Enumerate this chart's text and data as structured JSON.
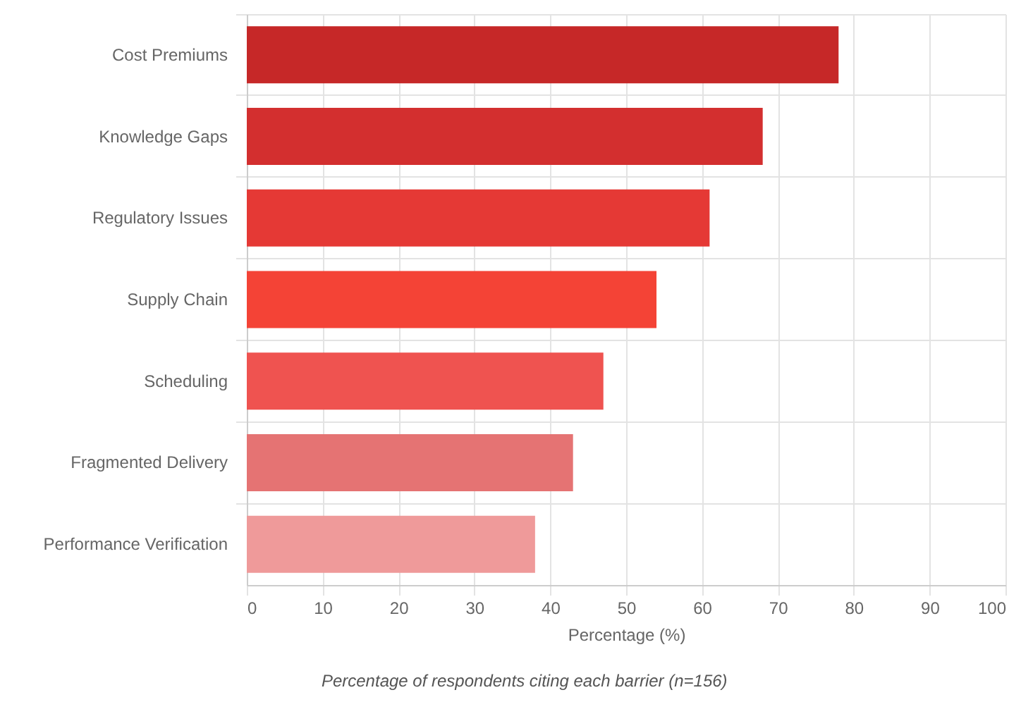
{
  "chart_data": {
    "type": "bar",
    "orientation": "horizontal",
    "categories": [
      "Cost Premiums",
      "Knowledge Gaps",
      "Regulatory Issues",
      "Supply Chain",
      "Scheduling",
      "Fragmented Delivery",
      "Performance Verification"
    ],
    "values": [
      78,
      68,
      61,
      54,
      47,
      43,
      38
    ],
    "colors": [
      "#c62828",
      "#d32f2f",
      "#e53935",
      "#f44336",
      "#ef5350",
      "#e57373",
      "#ef9a9a"
    ],
    "xlabel": "Percentage (%)",
    "xlim": [
      0,
      100
    ],
    "xticks": [
      0,
      10,
      20,
      30,
      40,
      50,
      60,
      70,
      80,
      90,
      100
    ],
    "grid": true,
    "annotations": [
      "Percentage of respondents citing each barrier (n=156)"
    ]
  }
}
